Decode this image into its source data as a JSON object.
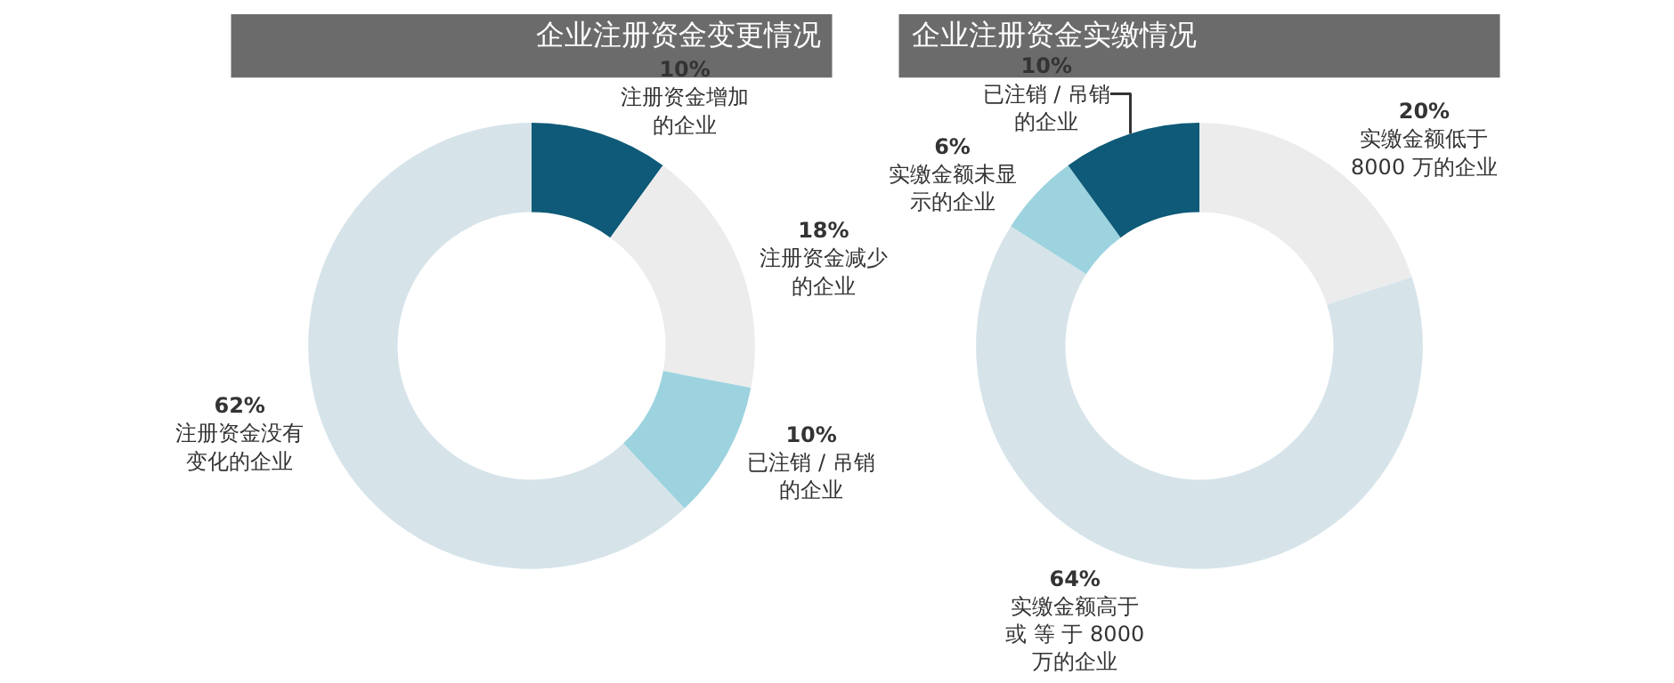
{
  "chart_data": [
    {
      "type": "donut",
      "title": "企业注册资金变更情况",
      "categories": [
        "注册资金增加的企业",
        "注册资金减少的企业",
        "已注销 / 吊销的企业",
        "注册资金没有变化的企业"
      ],
      "values": [
        10,
        18,
        10,
        62
      ],
      "value_labels": [
        "10%",
        "18%",
        "10%",
        "62%"
      ],
      "colors": [
        "#0e5a78",
        "#ececec",
        "#9dd3df",
        "#d6e4ea"
      ]
    },
    {
      "type": "donut",
      "title": "企业注册资金实缴情况",
      "categories": [
        "实缴金额低于8000 万的企业",
        "实缴金额高于或 等 于 8000 万的企业",
        "实缴金额未显示的企业",
        "已注销 / 吊销的企业"
      ],
      "values": [
        20,
        64,
        6,
        10
      ],
      "value_labels": [
        "20%",
        "64%",
        "6%",
        "10%"
      ],
      "colors": [
        "#ececec",
        "#d6e4ea",
        "#9dd3df",
        "#0e5a78"
      ]
    }
  ]
}
